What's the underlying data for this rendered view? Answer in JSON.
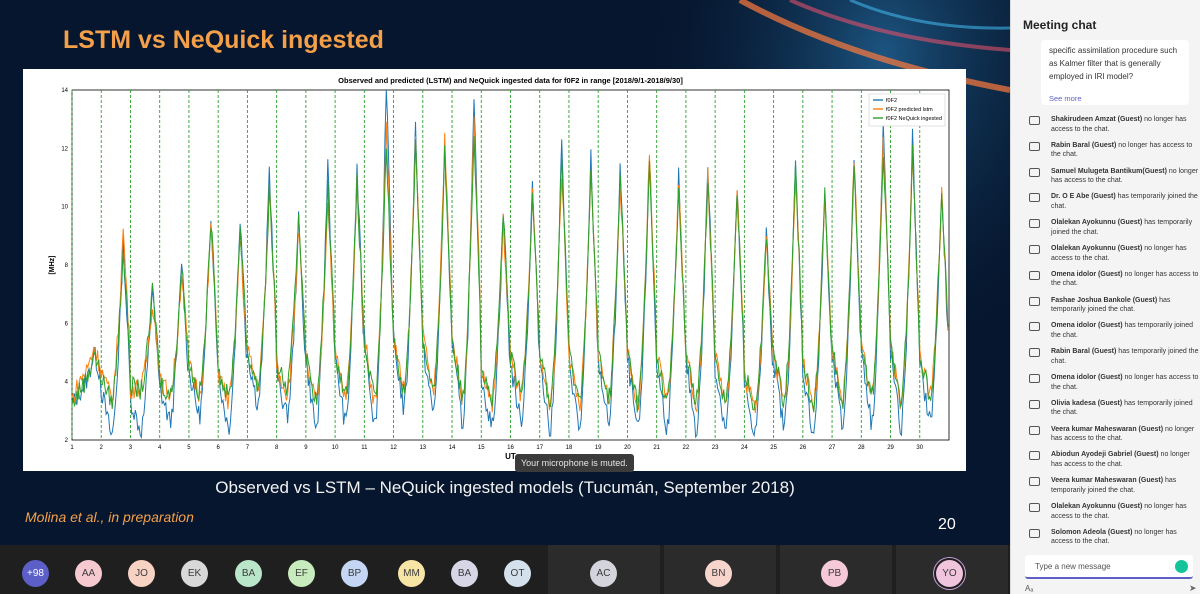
{
  "slide": {
    "title": "LSTM vs NeQuick ingested",
    "caption": "Observed vs LSTM – NeQuick ingested models (Tucumán, September 2018)",
    "credit": "Molina et al., in preparation",
    "page_number": "20",
    "toast": "Your microphone is muted."
  },
  "chart_data": {
    "type": "line",
    "title": "Observed and predicted (LSTM) and NeQuick ingested data for f0F2 in range [2018/9/1-2018/9/30]",
    "xlabel": "UT",
    "ylabel": "[MHz]",
    "ylim": [
      2,
      14
    ],
    "xlim": [
      1,
      31
    ],
    "yticks": [
      "2",
      "4",
      "6",
      "8",
      "10",
      "12",
      "14"
    ],
    "xticks": [
      "1",
      "2",
      "3",
      "4",
      "5",
      "6",
      "7",
      "8",
      "9",
      "10",
      "11",
      "12",
      "13",
      "14",
      "15",
      "16",
      "17",
      "18",
      "19",
      "20",
      "21",
      "22",
      "23",
      "24",
      "25",
      "26",
      "27",
      "28",
      "29",
      "30"
    ],
    "grid": "dashed vertical green lines at each day",
    "legend_position": "top-right",
    "series": [
      {
        "name": "f0F2",
        "color": "#1f77b4",
        "daily_peak": [
          5.0,
          8.8,
          7.4,
          8.2,
          9.8,
          9.7,
          11.3,
          9.5,
          11.6,
          11.4,
          14.2,
          12.8,
          12.2,
          13.5,
          9.8,
          10.8,
          12.2,
          11.7,
          11.4,
          11.8,
          11.0,
          11.5,
          10.6,
          9.1,
          11.5,
          10.5,
          11.8,
          12.8,
          12.4,
          10.6
        ],
        "daily_low": [
          3.8,
          2.1,
          2.3,
          2.6,
          2.8,
          2.4,
          3.2,
          2.8,
          2.3,
          2.5,
          2.4,
          3.0,
          2.9,
          2.5,
          2.4,
          2.6,
          2.2,
          2.3,
          2.5,
          2.2,
          2.4,
          2.3,
          2.4,
          2.2,
          2.4,
          2.2,
          2.4,
          2.5,
          2.3,
          2.6
        ]
      },
      {
        "name": "f0F2 predicted lstm",
        "color": "#ff7f0e",
        "daily_peak": [
          5.2,
          9.2,
          6.8,
          7.8,
          9.4,
          9.0,
          10.6,
          9.3,
          10.4,
          10.9,
          12.9,
          12.3,
          12.5,
          13.1,
          9.5,
          10.3,
          11.2,
          11.1,
          10.9,
          11.8,
          10.9,
          11.1,
          10.6,
          9.0,
          11.0,
          10.6,
          11.6,
          12.5,
          11.9,
          10.4
        ],
        "daily_low": [
          4.2,
          3.4,
          3.8,
          3.6,
          3.6,
          3.3,
          3.9,
          3.6,
          3.2,
          3.4,
          3.2,
          3.6,
          3.6,
          3.3,
          3.2,
          3.5,
          3.1,
          3.2,
          3.4,
          3.1,
          3.3,
          3.2,
          3.3,
          3.1,
          3.3,
          3.1,
          3.3,
          3.4,
          3.2,
          3.5
        ]
      },
      {
        "name": "f0F2 NeQuick ingested",
        "color": "#2ca02c",
        "daily_peak": [
          5.0,
          8.6,
          7.2,
          8.0,
          9.6,
          9.4,
          10.6,
          9.8,
          10.8,
          10.8,
          12.0,
          12.2,
          11.9,
          12.6,
          9.8,
          10.6,
          11.6,
          11.2,
          11.1,
          11.4,
          10.6,
          10.9,
          10.4,
          9.1,
          11.2,
          10.4,
          11.4,
          12.0,
          11.8,
          10.5
        ],
        "daily_low": [
          3.9,
          3.3,
          3.7,
          3.5,
          3.6,
          3.4,
          3.8,
          3.7,
          3.3,
          3.5,
          3.3,
          3.6,
          3.5,
          3.4,
          3.3,
          3.5,
          3.2,
          3.3,
          3.4,
          3.2,
          3.3,
          3.3,
          3.3,
          3.2,
          3.3,
          3.2,
          3.3,
          3.4,
          3.3,
          3.5
        ]
      }
    ]
  },
  "participants": [
    {
      "initials": "+98",
      "color": "#5b5fc7",
      "text_color": "#ffffff"
    },
    {
      "initials": "AA",
      "color": "#f6c9d0"
    },
    {
      "initials": "JO",
      "color": "#f8d3c4"
    },
    {
      "initials": "EK",
      "color": "#d8d8d8"
    },
    {
      "initials": "BA",
      "color": "#b9e6c8"
    },
    {
      "initials": "EF",
      "color": "#c8ebbd"
    },
    {
      "initials": "BP",
      "color": "#c4d6f3"
    },
    {
      "initials": "MM",
      "color": "#f7e5a6"
    },
    {
      "initials": "BA",
      "color": "#d6d6e6"
    },
    {
      "initials": "OT",
      "color": "#d4e0ec"
    },
    {
      "initials": "AC",
      "color": "#d4d4dc"
    },
    {
      "initials": "BN",
      "color": "#f8d5cc"
    },
    {
      "initials": "PB",
      "color": "#f6c9d8"
    },
    {
      "initials": "YO",
      "color": "#f0c4dc"
    }
  ],
  "chat": {
    "title": "Meeting chat",
    "message_text": "specific assimilation procedure such as Kalmer filter that is generally employed in IRI model?",
    "see_more": "See more",
    "input_placeholder": "Type a new message",
    "events": [
      {
        "name": "Shakirudeen Amzat (Guest)",
        "text": "no longer has access to the chat."
      },
      {
        "name": "Rabin Baral (Guest)",
        "text": "no longer has access to the chat."
      },
      {
        "name": "Samuel Mulugeta Bantikum(Guest)",
        "text": "no longer has access to the chat."
      },
      {
        "name": "Dr. O E Abe (Guest)",
        "text": "has temporarily joined the chat."
      },
      {
        "name": "Olalekan Ayokunnu (Guest)",
        "text": "has temporarily joined the chat."
      },
      {
        "name": "Olalekan Ayokunnu (Guest)",
        "text": "no longer has access to the chat."
      },
      {
        "name": "Omena idolor (Guest)",
        "text": "no longer has access to the chat."
      },
      {
        "name": "Fashae Joshua Bankole (Guest)",
        "text": "has temporarily joined the chat."
      },
      {
        "name": "Omena idolor (Guest)",
        "text": "has temporarily joined the chat."
      },
      {
        "name": "Rabin Baral (Guest)",
        "text": "has temporarily joined the chat."
      },
      {
        "name": "Omena idolor (Guest)",
        "text": "no longer has access to the chat."
      },
      {
        "name": "Olivia kadesa (Guest)",
        "text": "has temporarily joined the chat."
      },
      {
        "name": "Veera kumar Maheswaran (Guest)",
        "text": "no longer has access to the chat."
      },
      {
        "name": "Abiodun Ayodeji Gabriel (Guest)",
        "text": "no longer has access to the chat."
      },
      {
        "name": "Veera kumar Maheswaran (Guest)",
        "text": "has temporarily joined the chat."
      },
      {
        "name": "Olalekan Ayokunnu (Guest)",
        "text": "no longer has access to the chat."
      },
      {
        "name": "Solomon Adeola (Guest)",
        "text": "no longer has access to the chat."
      }
    ]
  }
}
